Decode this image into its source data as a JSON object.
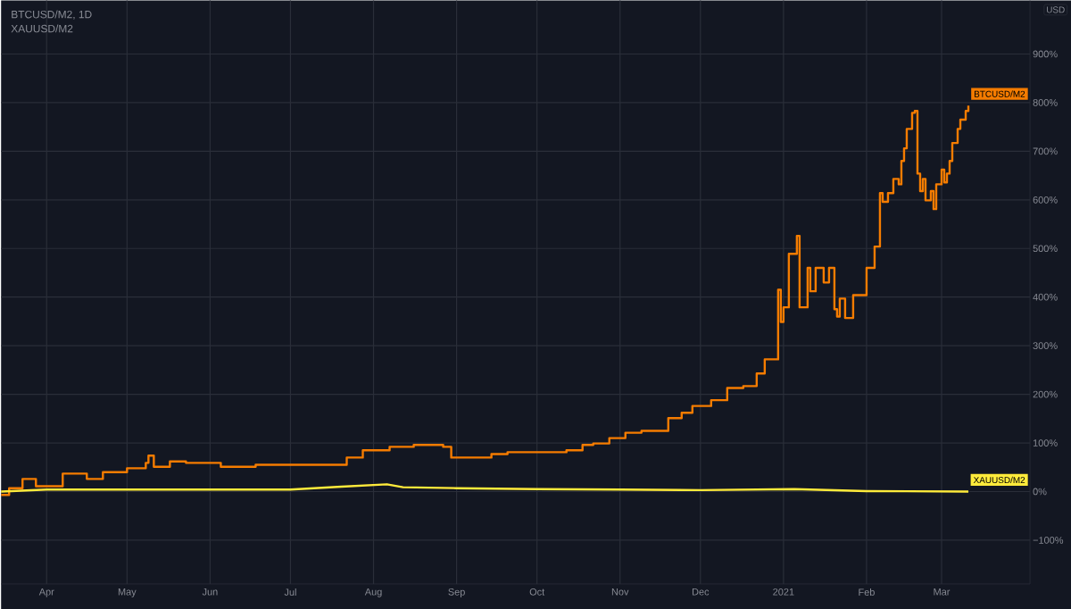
{
  "chart_data": {
    "type": "line",
    "title": "BTCUSD/M2, 1D",
    "subtitle": "XAUUSD/M2",
    "annotations": [
      "USD"
    ],
    "xlim": [
      "2020-03-15",
      "2021-04-03"
    ],
    "xticks": [
      {
        "value": "2020-04-01",
        "label": "Apr"
      },
      {
        "value": "2020-05-01",
        "label": "May"
      },
      {
        "value": "2020-06-01",
        "label": "Jun"
      },
      {
        "value": "2020-07-01",
        "label": "Jul"
      },
      {
        "value": "2020-08-01",
        "label": "Aug"
      },
      {
        "value": "2020-09-01",
        "label": "Sep"
      },
      {
        "value": "2020-10-01",
        "label": "Oct"
      },
      {
        "value": "2020-11-01",
        "label": "Nov"
      },
      {
        "value": "2020-12-01",
        "label": "Dec"
      },
      {
        "value": "2021-01-01",
        "label": "2021"
      },
      {
        "value": "2021-02-01",
        "label": "Feb"
      },
      {
        "value": "2021-03-01",
        "label": "Mar"
      }
    ],
    "ylim": [
      -190,
      1010
    ],
    "yticks": [
      {
        "value": -100,
        "label": "−100%"
      },
      {
        "value": 0,
        "label": "0%"
      },
      {
        "value": 100,
        "label": "100%"
      },
      {
        "value": 200,
        "label": "200%"
      },
      {
        "value": 300,
        "label": "300%"
      },
      {
        "value": 400,
        "label": "400%"
      },
      {
        "value": 500,
        "label": "500%"
      },
      {
        "value": 600,
        "label": "600%"
      },
      {
        "value": 700,
        "label": "700%"
      },
      {
        "value": 800,
        "label": "800%"
      },
      {
        "value": 900,
        "label": "900%"
      }
    ],
    "grid": true,
    "series": [
      {
        "name": "BTCUSD/M2",
        "type": "step",
        "color": "#f57c00",
        "x": [
          "2020-03-15",
          "2020-03-18",
          "2020-03-23",
          "2020-03-28",
          "2020-04-07",
          "2020-04-16",
          "2020-04-22",
          "2020-05-01",
          "2020-05-08",
          "2020-05-09",
          "2020-05-11",
          "2020-05-17",
          "2020-05-23",
          "2020-06-05",
          "2020-06-18",
          "2020-06-30",
          "2020-07-13",
          "2020-07-22",
          "2020-07-28",
          "2020-08-07",
          "2020-08-16",
          "2020-08-27",
          "2020-08-30",
          "2020-09-14",
          "2020-09-20",
          "2020-09-29",
          "2020-10-12",
          "2020-10-18",
          "2020-10-22",
          "2020-10-28",
          "2020-11-03",
          "2020-11-09",
          "2020-11-19",
          "2020-11-24",
          "2020-11-28",
          "2020-12-05",
          "2020-12-11",
          "2020-12-17",
          "2020-12-22",
          "2020-12-25",
          "2020-12-30",
          "2020-12-31",
          "2021-01-01",
          "2021-01-03",
          "2021-01-06",
          "2021-01-07",
          "2021-01-10",
          "2021-01-11",
          "2021-01-13",
          "2021-01-16",
          "2021-01-18",
          "2021-01-20",
          "2021-01-21",
          "2021-01-22",
          "2021-01-24",
          "2021-01-27",
          "2021-01-29",
          "2021-02-01",
          "2021-02-04",
          "2021-02-06",
          "2021-02-07",
          "2021-02-09",
          "2021-02-11",
          "2021-02-13",
          "2021-02-14",
          "2021-02-15",
          "2021-02-16",
          "2021-02-18",
          "2021-02-19",
          "2021-02-20",
          "2021-02-21",
          "2021-02-22",
          "2021-02-23",
          "2021-02-25",
          "2021-02-26",
          "2021-02-27",
          "2021-03-01",
          "2021-03-02",
          "2021-03-03",
          "2021-03-04",
          "2021-03-05",
          "2021-03-07",
          "2021-03-08",
          "2021-03-10",
          "2021-03-11"
        ],
        "values": [
          -7,
          7,
          26,
          11,
          37,
          26,
          40,
          48,
          59,
          74,
          51,
          62,
          59,
          51,
          55,
          55,
          55,
          70,
          85,
          92,
          96,
          92,
          70,
          77,
          81,
          81,
          85,
          96,
          99,
          110,
          121,
          125,
          151,
          162,
          176,
          188,
          213,
          217,
          243,
          272,
          415,
          349,
          379,
          489,
          526,
          379,
          460,
          412,
          460,
          430,
          460,
          375,
          360,
          397,
          357,
          404,
          404,
          460,
          504,
          614,
          596,
          614,
          643,
          632,
          680,
          706,
          746,
          779,
          783,
          654,
          618,
          643,
          599,
          618,
          581,
          632,
          662,
          636,
          654,
          680,
          717,
          746,
          765,
          783,
          794
        ]
      },
      {
        "name": "XAUUSD/M2",
        "color": "#ffeb3b",
        "x": [
          "2020-03-15",
          "2020-04-01",
          "2020-05-01",
          "2020-06-01",
          "2020-07-01",
          "2020-07-20",
          "2020-08-06",
          "2020-08-12",
          "2020-09-01",
          "2020-10-01",
          "2020-11-01",
          "2020-12-01",
          "2021-01-05",
          "2021-02-01",
          "2021-03-11"
        ],
        "values": [
          0,
          4,
          4,
          4,
          4,
          10,
          15,
          9,
          7,
          5,
          4,
          3,
          5,
          1,
          0
        ]
      }
    ]
  }
}
